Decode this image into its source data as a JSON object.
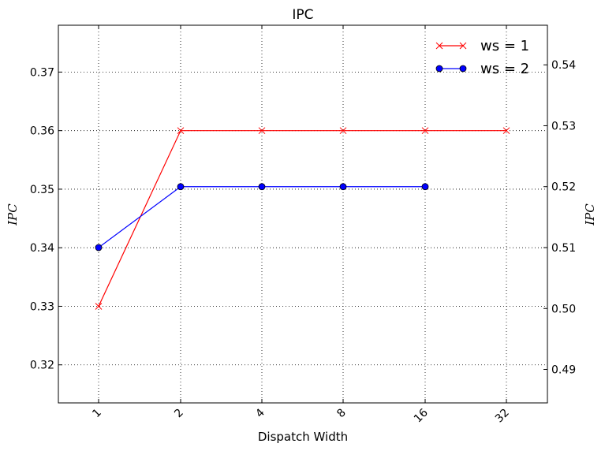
{
  "chart_data": {
    "type": "line",
    "title": "IPC",
    "xlabel": "Dispatch Width",
    "ylabel_left": "IPC",
    "ylabel_right": "IPC",
    "categories": [
      "1",
      "2",
      "4",
      "8",
      "16",
      "32"
    ],
    "left_axis": {
      "ylim": [
        0.3135,
        0.378
      ],
      "ticks": [
        "0.32",
        "0.33",
        "0.34",
        "0.35",
        "0.36",
        "0.37"
      ]
    },
    "right_axis": {
      "ylim": [
        0.4845,
        0.5465
      ],
      "ticks": [
        "0.49",
        "0.50",
        "0.51",
        "0.52",
        "0.53",
        "0.54"
      ]
    },
    "grid": true,
    "legend_position": "top-right",
    "series": [
      {
        "name": "ws = 1",
        "axis": "left",
        "color": "#ff0000",
        "marker": "x",
        "values": [
          0.33,
          0.36,
          0.36,
          0.36,
          0.36,
          0.36
        ]
      },
      {
        "name": "ws = 2",
        "axis": "right",
        "color": "#0000ff",
        "marker": "o",
        "values": [
          0.51,
          0.52,
          0.52,
          0.52,
          0.52,
          null
        ]
      }
    ]
  }
}
